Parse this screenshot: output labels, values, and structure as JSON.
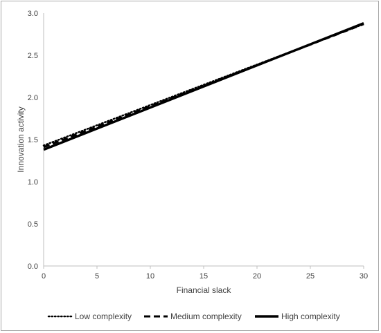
{
  "chart_data": {
    "type": "line",
    "title": "",
    "xlabel": "Financial slack",
    "ylabel": "Innovation activity",
    "xlim": [
      0,
      30
    ],
    "ylim": [
      0,
      3.0
    ],
    "x_ticks": [
      "0",
      "5",
      "10",
      "15",
      "20",
      "25",
      "30"
    ],
    "y_ticks": [
      "0.0",
      "0.5",
      "1.0",
      "1.5",
      "2.0",
      "2.5",
      "3.0"
    ],
    "grid": false,
    "legend_position": "bottom",
    "series": [
      {
        "name": "Low complexity",
        "style": "dotted",
        "color": "#000000",
        "x": [
          0,
          30
        ],
        "y": [
          1.43,
          2.87
        ]
      },
      {
        "name": "Medium complexity",
        "style": "dashed",
        "color": "#000000",
        "x": [
          0,
          30
        ],
        "y": [
          1.41,
          2.87
        ]
      },
      {
        "name": "High complexity",
        "style": "solid",
        "color": "#000000",
        "x": [
          0,
          30
        ],
        "y": [
          1.38,
          2.88
        ]
      }
    ]
  }
}
